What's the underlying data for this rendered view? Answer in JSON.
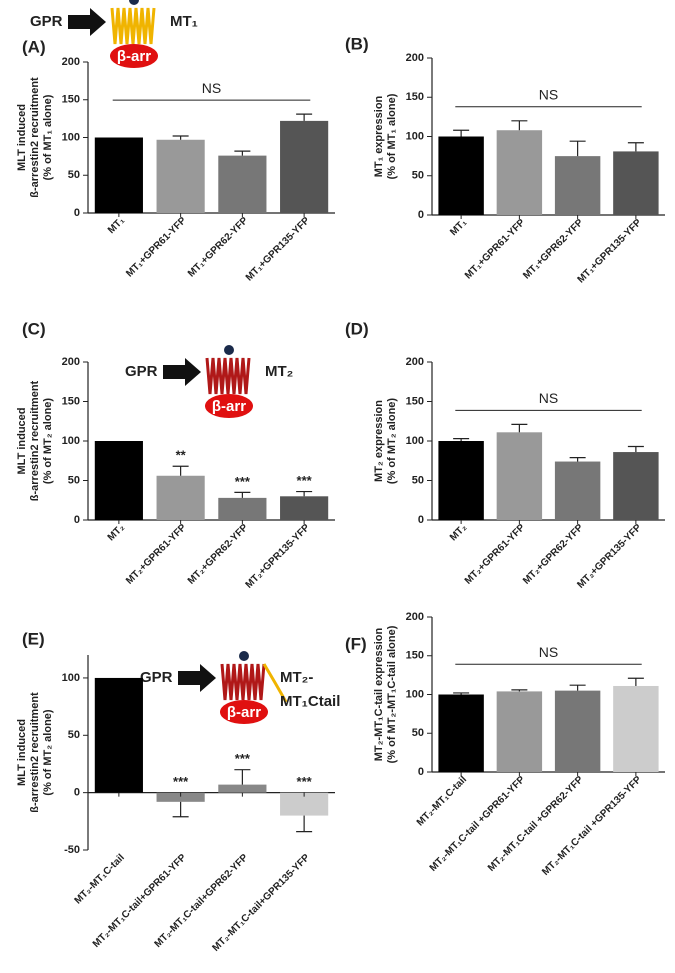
{
  "chart_data": [
    {
      "type": "bar",
      "panel": "(A)",
      "ylabel": [
        "MLT induced",
        "ß-arrestin2 recruitment",
        "(% of MT₁ alone)"
      ],
      "categories": [
        "MT₁",
        "MT₁+GPR61-YFP",
        "MT₁+GPR62-YFP",
        "MT₁+GPR135-YFP"
      ],
      "values": [
        100,
        97,
        76,
        122
      ],
      "errors": [
        null,
        5,
        6,
        9
      ],
      "colors": [
        "#000000",
        "#999999",
        "#777777",
        "#555555"
      ],
      "ylim": [
        0,
        200
      ],
      "yticks": [
        0,
        50,
        100,
        150,
        200
      ],
      "annotation": "NS",
      "diagram": {
        "gpr": "GPR",
        "arr": "β-arr",
        "receptor": [
          "MT₁"
        ]
      }
    },
    {
      "type": "bar",
      "panel": "(B)",
      "ylabel": [
        "MT₁ expression",
        "(% of MT₁ alone)"
      ],
      "categories": [
        "MT₁",
        "MT₁+GPR61-YFP",
        "MT₁+GPR62-YFP",
        "MT₁+GPR135-YFP"
      ],
      "values": [
        100,
        108,
        75,
        81
      ],
      "errors": [
        8,
        12,
        19,
        11
      ],
      "colors": [
        "#000000",
        "#999999",
        "#777777",
        "#555555"
      ],
      "ylim": [
        0,
        200
      ],
      "yticks": [
        0,
        50,
        100,
        150,
        200
      ],
      "annotation": "NS"
    },
    {
      "type": "bar",
      "panel": "(C)",
      "ylabel": [
        "MLT induced",
        "ß-arrestin2 recruitment",
        "(% of MT₂ alone)"
      ],
      "categories": [
        "MT₂",
        "MT₂+GPR61-YFP",
        "MT₂+GPR62-YFP",
        "MT₂+GPR135-YFP"
      ],
      "values": [
        100,
        56,
        28,
        30
      ],
      "errors": [
        null,
        12,
        7,
        6
      ],
      "colors": [
        "#000000",
        "#999999",
        "#777777",
        "#555555"
      ],
      "ylim": [
        0,
        200
      ],
      "yticks": [
        0,
        50,
        100,
        150,
        200
      ],
      "value_annotations": [
        null,
        "**",
        "***",
        "***"
      ],
      "diagram": {
        "gpr": "GPR",
        "arr": "β-arr",
        "receptor": [
          "MT₂"
        ]
      }
    },
    {
      "type": "bar",
      "panel": "(D)",
      "ylabel": [
        "MT₂ expression",
        "(% of MT₂ alone)"
      ],
      "categories": [
        "MT₂",
        "MT₂+GPR61-YFP",
        "MT₂+GPR62-YFP",
        "MT₂+GPR135-YFP"
      ],
      "values": [
        100,
        111,
        74,
        86
      ],
      "errors": [
        3,
        10,
        5,
        7
      ],
      "colors": [
        "#000000",
        "#999999",
        "#777777",
        "#555555"
      ],
      "ylim": [
        0,
        200
      ],
      "yticks": [
        0,
        50,
        100,
        150,
        200
      ],
      "annotation": "NS"
    },
    {
      "type": "bar",
      "panel": "(E)",
      "ylabel": [
        "MLT induced",
        "ß-arrestin2 recruitment",
        "(% of MT₂ alone)"
      ],
      "categories": [
        "MT₂-MT₁C-tail",
        "MT₂-MT₁C-tail+GPR61-YFP",
        "MT₂-MT₁C-tail+GPR62-YFP",
        "MT₂-MT₁C-tail+GPR135-YFP"
      ],
      "values": [
        100,
        -8,
        7,
        -20
      ],
      "errors": [
        null,
        13,
        13,
        14
      ],
      "colors": [
        "#000000",
        "#888888",
        "#888888",
        "#cccccc"
      ],
      "ylim": [
        -50,
        120
      ],
      "yticks": [
        -50,
        0,
        50,
        100
      ],
      "value_annotations": [
        null,
        "***",
        "***",
        "***"
      ],
      "diagram": {
        "gpr": "GPR",
        "arr": "β-arr",
        "receptor": [
          "MT₂-",
          "MT₁Ctail"
        ]
      }
    },
    {
      "type": "bar",
      "panel": "(F)",
      "ylabel": [
        "MT₂-MT₁C-tail  expression",
        "(% of MT₂-MT₁C-tail alone)"
      ],
      "categories": [
        "MT₂-MT₁C-tail",
        "MT₂-MT₁C-tail +GPR61-YFP",
        "MT₂-MT₁C-tail +GPR62-YFP",
        "MT₂-MT₁C-tail +GPR135-YFP"
      ],
      "values": [
        100,
        104,
        105,
        111
      ],
      "errors": [
        2,
        2,
        7,
        10
      ],
      "colors": [
        "#000000",
        "#999999",
        "#777777",
        "#cccccc"
      ],
      "ylim": [
        0,
        200
      ],
      "yticks": [
        0,
        50,
        100,
        150,
        200
      ],
      "annotation": "NS"
    }
  ]
}
